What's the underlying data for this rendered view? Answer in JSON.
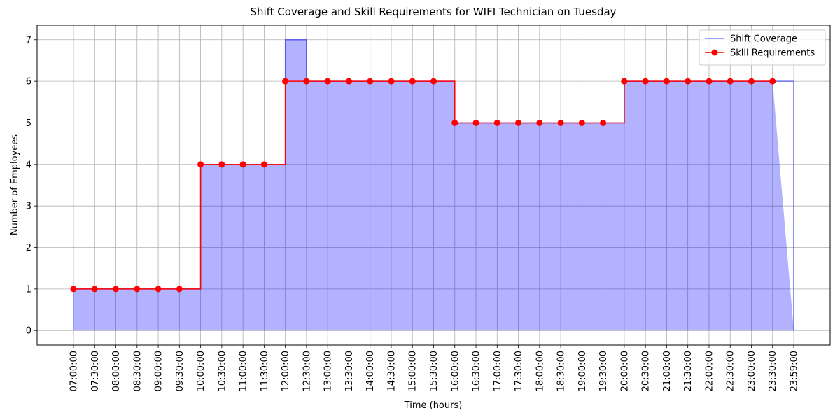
{
  "chart_data": {
    "type": "step",
    "title": "Shift Coverage and Skill Requirements for WIFI Technician on Tuesday",
    "x_label": "Time (hours)",
    "y_label": "Number of Employees",
    "categories": [
      "07:00:00",
      "07:30:00",
      "08:00:00",
      "08:30:00",
      "09:00:00",
      "09:30:00",
      "10:00:00",
      "10:30:00",
      "11:00:00",
      "11:30:00",
      "12:00:00",
      "12:30:00",
      "13:00:00",
      "13:30:00",
      "14:00:00",
      "14:30:00",
      "15:00:00",
      "15:30:00",
      "16:00:00",
      "16:30:00",
      "17:00:00",
      "17:30:00",
      "18:00:00",
      "18:30:00",
      "19:00:00",
      "19:30:00",
      "20:00:00",
      "20:30:00",
      "21:00:00",
      "21:30:00",
      "22:00:00",
      "22:30:00",
      "23:00:00",
      "23:30:00",
      "23:59:00"
    ],
    "series": [
      {
        "name": "Shift Coverage",
        "color": "#0000ff",
        "fill": true,
        "values": [
          1,
          1,
          1,
          1,
          1,
          1,
          4,
          4,
          4,
          4,
          7,
          6,
          6,
          6,
          6,
          6,
          6,
          6,
          5,
          5,
          5,
          5,
          5,
          5,
          5,
          5,
          6,
          6,
          6,
          6,
          6,
          6,
          6,
          6,
          0
        ]
      },
      {
        "name": "Skill Requirements",
        "color": "#ff0000",
        "markers": true,
        "values": [
          1,
          1,
          1,
          1,
          1,
          1,
          4,
          4,
          4,
          4,
          6,
          6,
          6,
          6,
          6,
          6,
          6,
          6,
          5,
          5,
          5,
          5,
          5,
          5,
          5,
          5,
          6,
          6,
          6,
          6,
          6,
          6,
          6,
          6,
          null
        ]
      }
    ],
    "ylim": [
      -0.35,
      7.35
    ],
    "yticks": [
      0,
      1,
      2,
      3,
      4,
      5,
      6,
      7
    ],
    "grid": true,
    "legend": "upper right"
  }
}
